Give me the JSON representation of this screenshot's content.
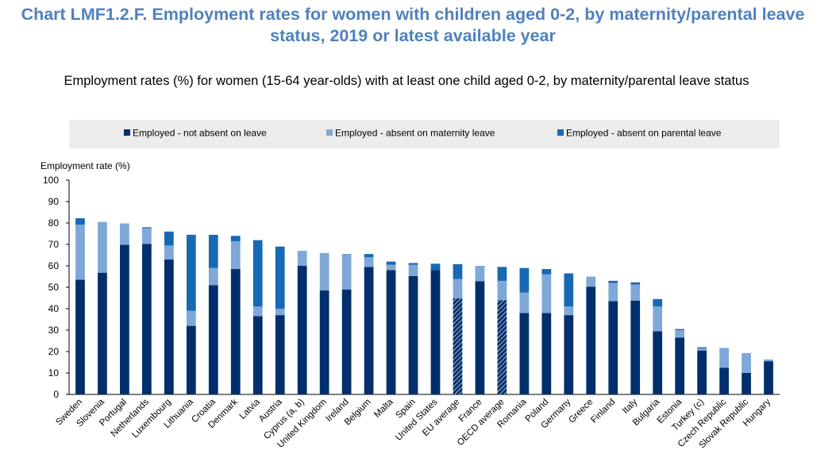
{
  "header": {
    "title_line1": "Chart LMF1.2.F. Employment rates for women with children aged 0-2, by maternity/parental leave",
    "title_line2": "status, 2019 or latest available year",
    "subtitle": "Employment rates (%) for women (15-64 year-olds) with at least one child aged 0-2, by maternity/parental leave status"
  },
  "chart_data": {
    "type": "bar",
    "stacked": true,
    "ylabel": "Employment rate (%)",
    "ylim": [
      0,
      100
    ],
    "yticks": [
      0,
      10,
      20,
      30,
      40,
      50,
      60,
      70,
      80,
      90,
      100
    ],
    "legend_position": "top",
    "grid": false,
    "colors": {
      "not_absent": "#002f6c",
      "maternity": "#7fa8d9",
      "parental": "#1769b4"
    },
    "categories": [
      "Sweden",
      "Slovenia",
      "Portugal",
      "Netherlands",
      "Luxembourg",
      "Lithuania",
      "Croatia",
      "Denmark",
      "Latvia",
      "Austria",
      "Cyprus (a, b)",
      "United Kingdom",
      "Ireland",
      "Belgium",
      "Malta",
      "Spain",
      "United States",
      "EU average",
      "France",
      "OECD average",
      "Romania",
      "Poland",
      "Germany",
      "Greece",
      "Finland",
      "Italy",
      "Bulgaria",
      "Estonia",
      "Turkey (c)",
      "Czech Republic",
      "Slovak Republic",
      "Hungary"
    ],
    "hatched_categories": [
      "EU average",
      "OECD average"
    ],
    "series": [
      {
        "name": "Employed - not absent on leave",
        "key": "not_absent",
        "values": [
          53.5,
          56.8,
          69.8,
          70.2,
          63,
          32,
          51,
          58.5,
          36.5,
          37,
          60,
          48.5,
          49,
          59.5,
          58,
          55.2,
          58,
          44.8,
          52.8,
          44,
          38,
          38,
          37,
          50.3,
          43.5,
          43.8,
          29.5,
          26.5,
          20.5,
          12.5,
          10,
          15.5
        ]
      },
      {
        "name": "Employed - absent on maternity leave",
        "key": "maternity",
        "values": [
          25.7,
          23.7,
          10,
          7.3,
          6.5,
          7,
          8,
          13,
          4.5,
          3,
          7,
          17.5,
          16.3,
          4.5,
          2.5,
          5.3,
          0,
          9,
          7.2,
          9,
          9.5,
          18,
          4,
          4.7,
          8.5,
          7.5,
          11.5,
          3.5,
          1,
          9.2,
          9.3,
          0.8
        ]
      },
      {
        "name": "Employed - absent on parental leave",
        "key": "parental",
        "values": [
          3,
          0,
          0,
          0.5,
          6.5,
          35.5,
          15.5,
          2.5,
          31,
          29,
          0,
          0,
          0.2,
          1.5,
          1.5,
          0.8,
          3,
          7,
          0,
          6.5,
          11.5,
          2.5,
          15.5,
          0,
          1,
          1,
          3.5,
          0.5,
          0.5,
          0,
          0,
          0
        ]
      }
    ]
  }
}
